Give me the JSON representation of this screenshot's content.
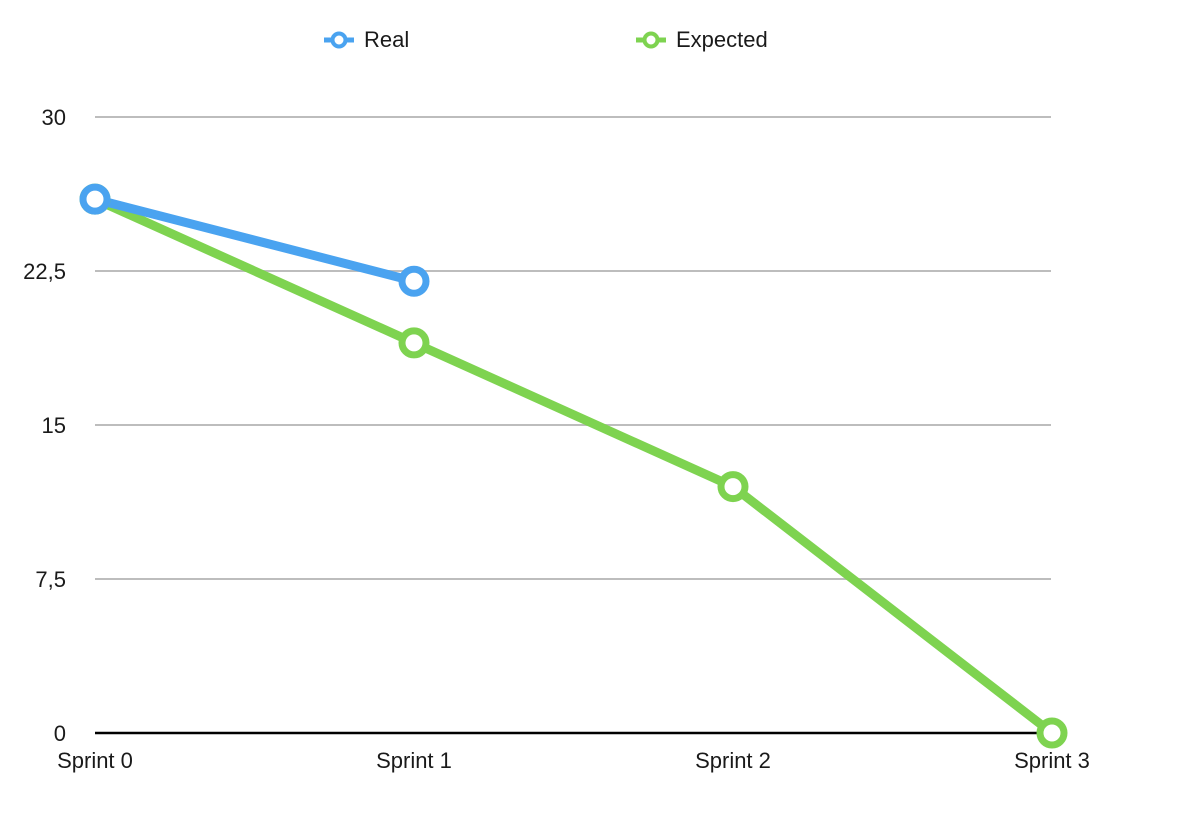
{
  "chart_data": {
    "type": "line",
    "categories": [
      "Sprint 0",
      "Sprint 1",
      "Sprint 2",
      "Sprint 3"
    ],
    "series": [
      {
        "name": "Real",
        "color": "#4aa3f0",
        "values": [
          26,
          22,
          null,
          null
        ]
      },
      {
        "name": "Expected",
        "color": "#7ed350",
        "values": [
          26,
          19,
          12,
          0
        ]
      }
    ],
    "yticks": [
      "0",
      "7,5",
      "15",
      "22,5",
      "30"
    ],
    "ytick_values": [
      0,
      7.5,
      15,
      22.5,
      30
    ],
    "ylim": [
      0,
      30
    ],
    "grid": true,
    "legend_position": "top-center"
  }
}
